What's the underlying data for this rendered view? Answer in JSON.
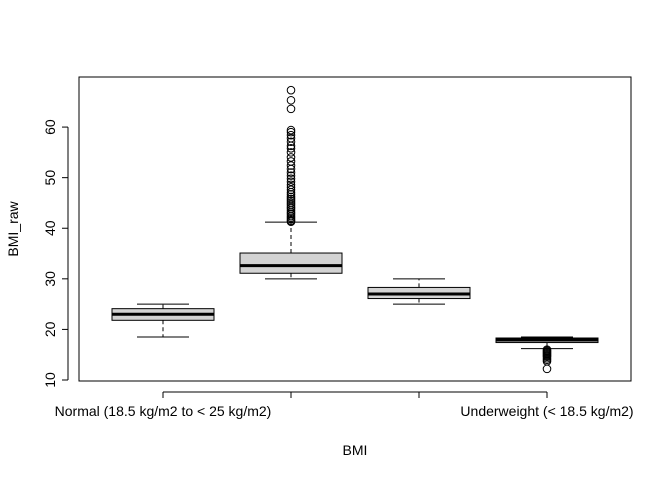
{
  "chart_data": {
    "type": "boxplot",
    "xlabel": "BMI",
    "ylabel": "BMI_raw",
    "ylim": [
      10,
      70
    ],
    "yticks": [
      10,
      20,
      30,
      40,
      50,
      60
    ],
    "categories": [
      "Normal (18.5 kg/m2 to < 25 kg/m2)",
      "",
      "",
      "Underweight (< 18.5 kg/m2)"
    ],
    "boxes": [
      {
        "whisker_low": 18.5,
        "q1": 21.8,
        "median": 23.0,
        "q3": 24.1,
        "whisker_high": 25.0,
        "outliers": []
      },
      {
        "whisker_low": 30.0,
        "q1": 31.1,
        "median": 32.6,
        "q3": 35.1,
        "whisker_high": 41.2,
        "outliers": [
          41.3,
          41.5,
          41.8,
          42.1,
          42.4,
          42.8,
          43.1,
          43.5,
          43.9,
          44.2,
          44.6,
          45.0,
          45.4,
          45.8,
          46.2,
          46.7,
          47.1,
          47.6,
          48.1,
          48.6,
          49.2,
          49.8,
          50.4,
          51.0,
          51.7,
          52.4,
          53.2,
          54.0,
          55.0,
          55.8,
          56.3,
          57.1,
          57.8,
          58.4,
          59.0,
          59.4,
          63.6,
          65.3,
          67.3
        ]
      },
      {
        "whisker_low": 25.0,
        "q1": 26.1,
        "median": 27.0,
        "q3": 28.3,
        "whisker_high": 30.0,
        "outliers": []
      },
      {
        "whisker_low": 16.2,
        "q1": 17.4,
        "median": 17.9,
        "q3": 18.3,
        "whisker_high": 18.5,
        "outliers": [
          16.0,
          15.8,
          15.6,
          15.4,
          15.2,
          15.0,
          14.8,
          14.6,
          14.3,
          14.0,
          13.7,
          12.2
        ]
      }
    ],
    "colors": {
      "box_fill": "#d3d3d3",
      "stroke": "#000000"
    }
  }
}
